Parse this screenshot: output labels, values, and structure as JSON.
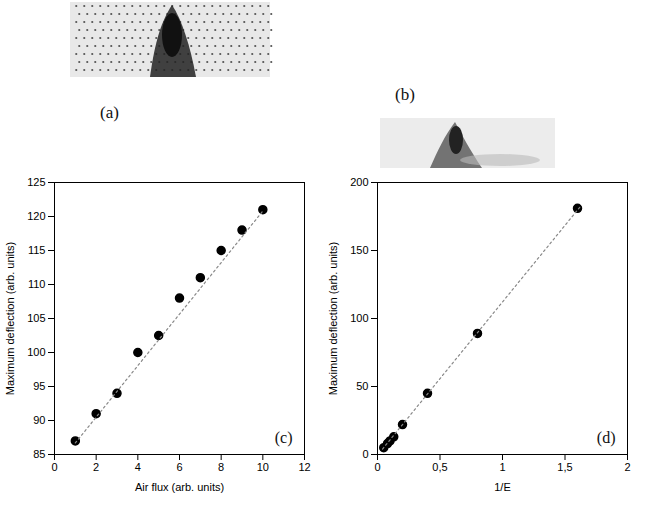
{
  "images": [
    {
      "label": "(a)"
    },
    {
      "label": "(b)"
    }
  ],
  "chart_data": [
    {
      "type": "scatter",
      "annotations": [
        {
          "text": "(c)"
        }
      ],
      "x_label": "Air flux (arb. units)",
      "y_label": "Maximum deflection (arb. units)",
      "xlim": [
        0,
        12
      ],
      "xticks": [
        0,
        2,
        4,
        6,
        8,
        10,
        12
      ],
      "ylim": [
        85,
        125
      ],
      "yticks": [
        85,
        90,
        95,
        100,
        105,
        110,
        115,
        120,
        125
      ],
      "series": [
        {
          "type": "scatter",
          "color": "#000000",
          "marker": "circle",
          "x": [
            1,
            2,
            3,
            4,
            5,
            6,
            7,
            8,
            9,
            10
          ],
          "values": [
            87,
            91,
            94,
            100,
            102.5,
            108,
            111,
            115,
            118,
            121
          ]
        },
        {
          "type": "line",
          "color": "#888888",
          "line_style": "dotted",
          "x": [
            1,
            10
          ],
          "values": [
            86.7,
            120.8
          ]
        }
      ]
    },
    {
      "type": "scatter",
      "annotations": [
        {
          "text": "(d)"
        }
      ],
      "x_label": "1/E",
      "y_label": "Maximum deflection (arb. units)",
      "xlim": [
        0,
        2
      ],
      "xticks": [
        0,
        {
          "value": 0.5,
          "label": "0,5"
        },
        1,
        {
          "value": 1.5,
          "label": "1,5"
        },
        2
      ],
      "ylim": [
        0,
        200
      ],
      "yticks": [
        0,
        50,
        100,
        150,
        200
      ],
      "series": [
        {
          "type": "scatter",
          "color": "#000000",
          "marker": "circle",
          "x": [
            0.05,
            0.08,
            0.1,
            0.13,
            0.2,
            0.4,
            0.8,
            1.6
          ],
          "values": [
            5,
            8,
            10,
            13,
            22,
            45,
            89,
            181
          ]
        },
        {
          "type": "line",
          "color": "#888888",
          "line_style": "dotted",
          "x": [
            0.04,
            1.62
          ],
          "values": [
            4,
            182
          ]
        }
      ]
    }
  ]
}
